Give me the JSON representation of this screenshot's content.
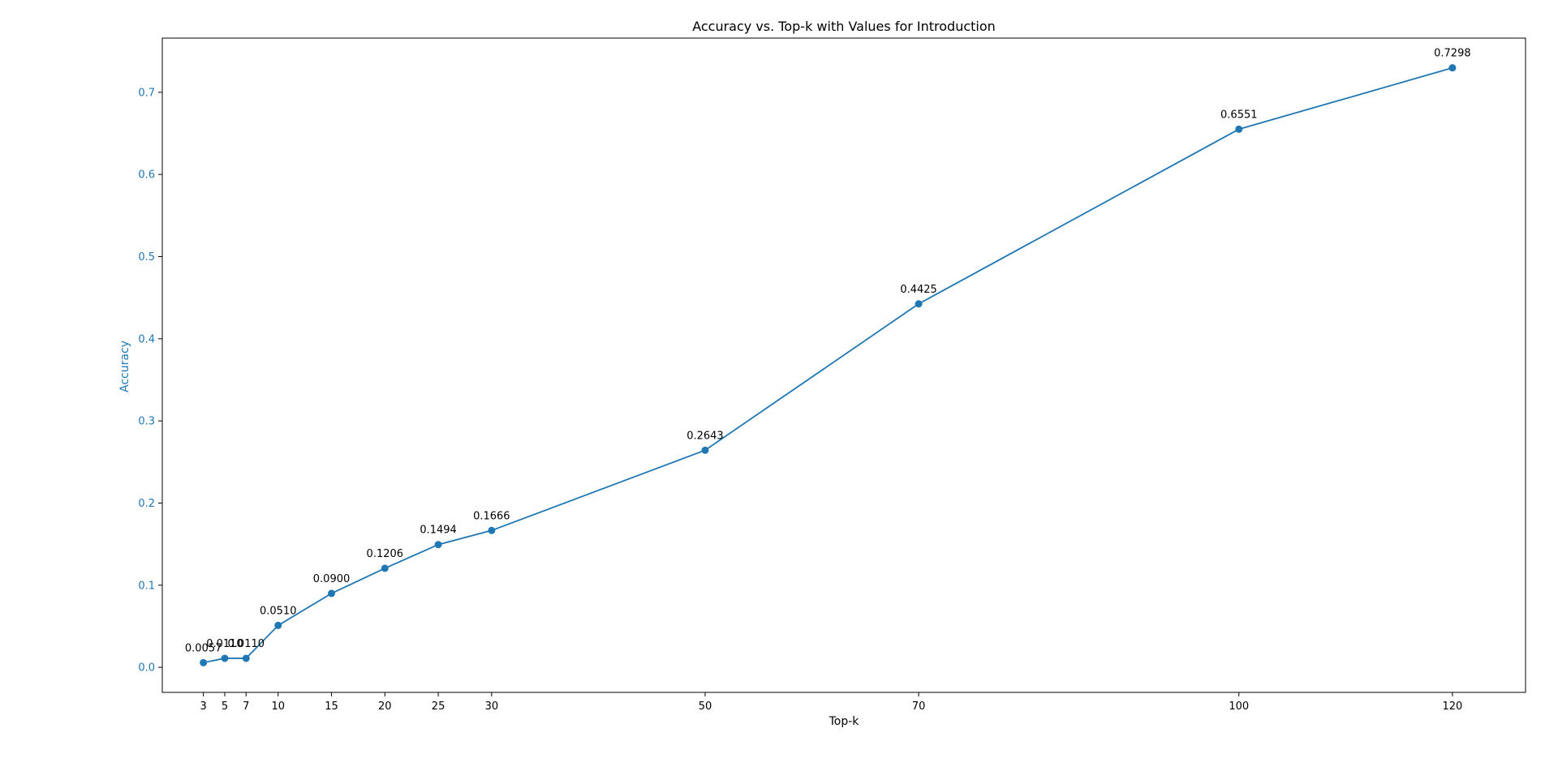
{
  "chart_data": {
    "type": "line",
    "title": "Accuracy vs. Top-k with Values for Introduction",
    "xlabel": "Top-k",
    "ylabel": "Accuracy",
    "xlim": [
      -0.85,
      126.85
    ],
    "ylim": [
      -0.0305,
      0.766
    ],
    "x_ticks": [
      3,
      5,
      7,
      10,
      15,
      20,
      25,
      30,
      50,
      70,
      100,
      120
    ],
    "y_ticks": [
      0.0,
      0.1,
      0.2,
      0.3,
      0.4,
      0.5,
      0.6,
      0.7
    ],
    "y_tick_labels": [
      "0.0",
      "0.1",
      "0.2",
      "0.3",
      "0.4",
      "0.5",
      "0.6",
      "0.7"
    ],
    "grid": false,
    "series": [
      {
        "color": "#1f77b4",
        "x": [
          3,
          5,
          7,
          10,
          15,
          20,
          25,
          30,
          50,
          70,
          100,
          120
        ],
        "values": [
          0.0057,
          0.011,
          0.011,
          0.051,
          0.09,
          0.1206,
          0.1494,
          0.1666,
          0.2643,
          0.4425,
          0.6551,
          0.7298
        ],
        "labels": [
          "0.0057",
          "0.0110",
          "0.0110",
          "0.0510",
          "0.0900",
          "0.1206",
          "0.1494",
          "0.1666",
          "0.2643",
          "0.4425",
          "0.6551",
          "0.7298"
        ]
      }
    ],
    "colors": {
      "series": "#1f77b4",
      "ylabel": "#1f77b4",
      "text": "#000000"
    }
  }
}
